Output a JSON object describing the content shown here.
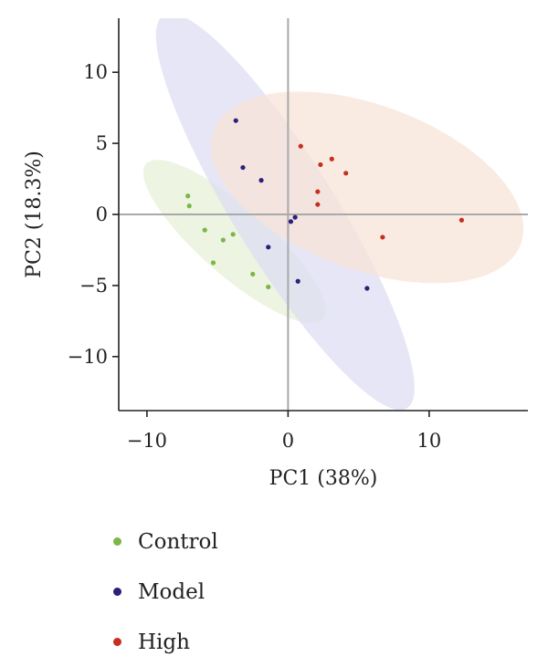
{
  "chart_data": {
    "type": "scatter",
    "xlabel": "PC1 (38%)",
    "ylabel": "PC2 (18.3%)",
    "xlim": [
      -12,
      17
    ],
    "ylim": [
      -13.8,
      13.8
    ],
    "xticks": [
      -10,
      0,
      10
    ],
    "yticks": [
      10,
      5,
      0,
      -5,
      -10
    ],
    "tick_labels_x": [
      "−10",
      "0",
      "10"
    ],
    "tick_labels_y": [
      "10",
      "5",
      "0",
      "−5",
      "−10"
    ],
    "grid": false,
    "zero_lines": true,
    "legend_placement": "bottom",
    "series": [
      {
        "name": "Control",
        "color": "#7ab648",
        "fill": "#e6f0d6",
        "ellipse": {
          "center": [
            -3.8,
            -1.9
          ],
          "rx": 8.3,
          "ry": 2.4,
          "angle_deg": -41
        },
        "points": [
          [
            -7.1,
            1.3
          ],
          [
            -7.0,
            0.6
          ],
          [
            -5.9,
            -1.1
          ],
          [
            -4.6,
            -1.8
          ],
          [
            -3.9,
            -1.4
          ],
          [
            -5.3,
            -3.4
          ],
          [
            -2.5,
            -4.2
          ],
          [
            -1.4,
            -5.1
          ]
        ]
      },
      {
        "name": "Model",
        "color": "#2e1f7a",
        "fill": "#dcdcf3",
        "ellipse": {
          "center": [
            -0.2,
            0.2
          ],
          "rx": 16.3,
          "ry": 3.6,
          "angle_deg": -58
        },
        "points": [
          [
            -3.7,
            6.6
          ],
          [
            -3.2,
            3.3
          ],
          [
            -1.9,
            2.4
          ],
          [
            0.5,
            -0.2
          ],
          [
            0.2,
            -0.5
          ],
          [
            -1.4,
            -2.3
          ],
          [
            0.7,
            -4.7
          ],
          [
            5.6,
            -5.2
          ]
        ]
      },
      {
        "name": "High",
        "color": "#c62f1e",
        "fill": "#f8e3d7",
        "ellipse": {
          "center": [
            5.6,
            1.9
          ],
          "rx": 11.6,
          "ry": 5.8,
          "angle_deg": -20
        },
        "points": [
          [
            0.9,
            4.8
          ],
          [
            2.3,
            3.5
          ],
          [
            3.1,
            3.9
          ],
          [
            4.1,
            2.9
          ],
          [
            2.1,
            1.6
          ],
          [
            2.1,
            0.7
          ],
          [
            6.7,
            -1.6
          ],
          [
            12.3,
            -0.4
          ]
        ]
      }
    ]
  },
  "legend": {
    "items": [
      "Control",
      "Model",
      "High"
    ]
  }
}
